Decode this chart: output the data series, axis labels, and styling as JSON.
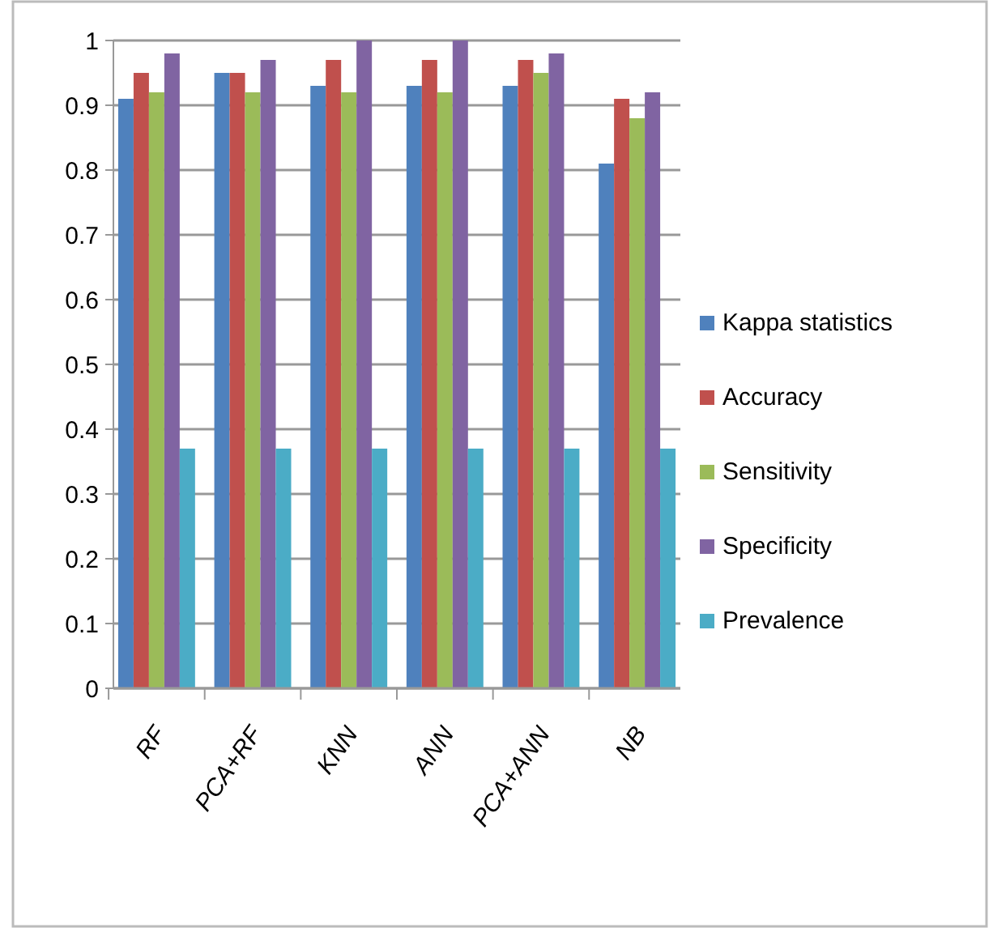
{
  "chart_data": {
    "type": "bar",
    "categories": [
      "RF",
      "PCA+RF",
      "KNN",
      "ANN",
      "PCA+ANN",
      "NB"
    ],
    "series": [
      {
        "name": "Kappa statistics",
        "color": "#4f81bd",
        "values": [
          0.91,
          0.95,
          0.93,
          0.93,
          0.93,
          0.81
        ]
      },
      {
        "name": "Accuracy",
        "color": "#c0504d",
        "values": [
          0.95,
          0.95,
          0.97,
          0.97,
          0.97,
          0.91
        ]
      },
      {
        "name": "Sensitivity",
        "color": "#9bbb59",
        "values": [
          0.92,
          0.92,
          0.92,
          0.92,
          0.95,
          0.88
        ]
      },
      {
        "name": "Specificity",
        "color": "#8064a2",
        "values": [
          0.98,
          0.97,
          1.0,
          1.0,
          0.98,
          0.92
        ]
      },
      {
        "name": "Prevalence",
        "color": "#4bacc6",
        "values": [
          0.37,
          0.37,
          0.37,
          0.37,
          0.37,
          0.37
        ]
      }
    ],
    "ylim": [
      0,
      1
    ],
    "yticks": [
      0,
      {
        "value": 0.1,
        "label": "0.1"
      },
      {
        "value": 0.2,
        "label": "0.2"
      },
      {
        "value": 0.3,
        "label": "0.3"
      },
      {
        "value": 0.4,
        "label": "0.4"
      },
      {
        "value": 0.5,
        "label": "0.5"
      },
      {
        "value": 0.6,
        "label": "0.6"
      },
      {
        "value": 0.7,
        "label": "0.7"
      },
      {
        "value": 0.8,
        "label": "0.8"
      },
      {
        "value": 0.9,
        "label": "0.9"
      },
      1
    ],
    "grid": "y",
    "legend": "right"
  }
}
